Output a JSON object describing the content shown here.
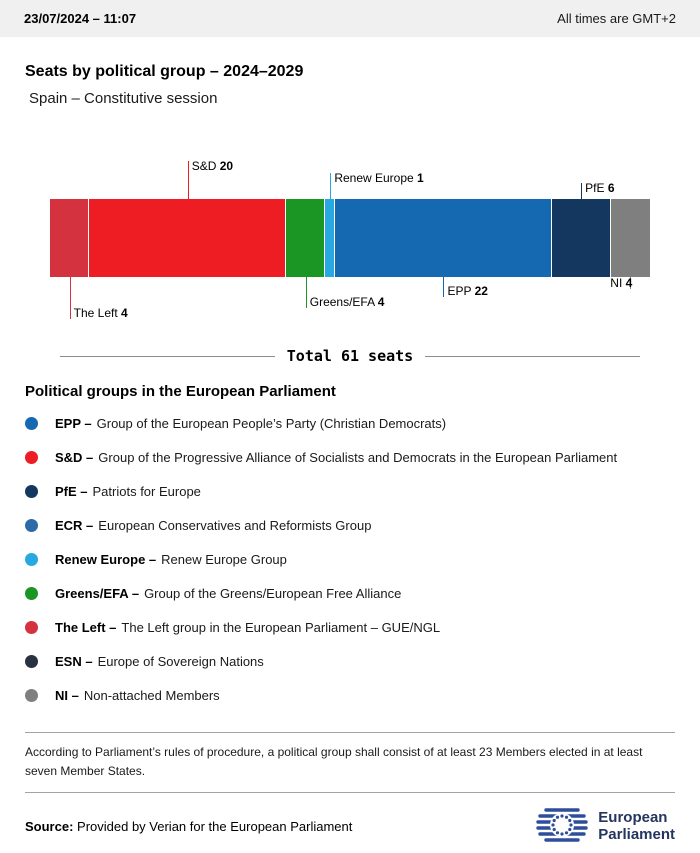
{
  "header": {
    "datetime": "23/07/2024 – 11:07",
    "timezone_note": "All times are GMT+2"
  },
  "title": "Seats by political group – 2024–2029",
  "subtitle": "Spain – Constitutive session",
  "chart_data": {
    "type": "bar",
    "variant": "horizontal-stacked-seat-bar",
    "title": "Seats by political group – 2024–2029",
    "subtitle": "Spain – Constitutive session",
    "total_seats": 61,
    "total_label": "Total 61 seats",
    "legend_position": "below",
    "segments": [
      {
        "name": "The Left",
        "seats": 4,
        "color": "#d5323f",
        "callout": {
          "side": "below",
          "line": 42,
          "align": "left"
        }
      },
      {
        "name": "S&D",
        "seats": 20,
        "color": "#ee1c23",
        "callout": {
          "side": "above",
          "line": 38,
          "align": "left"
        }
      },
      {
        "name": "Greens/EFA",
        "seats": 4,
        "color": "#1b9523",
        "callout": {
          "side": "below",
          "line": 31,
          "align": "left"
        }
      },
      {
        "name": "Renew Europe",
        "seats": 1,
        "color": "#28a8e0",
        "callout": {
          "side": "above",
          "line": 26,
          "align": "left"
        }
      },
      {
        "name": "EPP",
        "seats": 22,
        "color": "#1569b1",
        "callout": {
          "side": "below",
          "line": 20,
          "align": "left"
        }
      },
      {
        "name": "PfE",
        "seats": 6,
        "color": "#14375f",
        "callout": {
          "side": "above",
          "line": 16,
          "align": "left"
        }
      },
      {
        "name": "NI",
        "seats": 4,
        "color": "#7f7f7f",
        "callout": {
          "side": "below",
          "line": 12,
          "align": "right"
        }
      }
    ]
  },
  "legend": {
    "heading": "Political groups in the European Parliament",
    "items": [
      {
        "label": "EPP –",
        "text": "Group of the European People’s Party (Christian Democrats)",
        "color": "#1569b1"
      },
      {
        "label": "S&D –",
        "text": "Group of the Progressive Alliance of Socialists and Democrats in the European Parliament",
        "color": "#ee1c23"
      },
      {
        "label": "PfE –",
        "text": "Patriots for Europe",
        "color": "#14375f"
      },
      {
        "label": "ECR –",
        "text": "European Conservatives and Reformists Group",
        "color": "#2c6ba6"
      },
      {
        "label": "Renew Europe –",
        "text": "Renew Europe Group",
        "color": "#28a8e0"
      },
      {
        "label": "Greens/EFA –",
        "text": "Group of the Greens/European Free Alliance",
        "color": "#1b9523"
      },
      {
        "label": "The Left –",
        "text": "The Left group in the European Parliament – GUE/NGL",
        "color": "#d5323f"
      },
      {
        "label": "ESN –",
        "text": "Europe of Sovereign Nations",
        "color": "#283241"
      },
      {
        "label": "NI –",
        "text": "Non-attached Members",
        "color": "#7f7f7f"
      }
    ]
  },
  "footnote": "According to Parliament’s rules of procedure, a political group shall consist of at least 23 Members elected in at least seven Member States.",
  "footer": {
    "source_label": "Source:",
    "source_text": "Provided by Verian for the European Parliament",
    "logo_line1": "European",
    "logo_line2": "Parliament"
  }
}
